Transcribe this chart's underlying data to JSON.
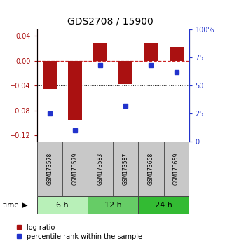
{
  "title": "GDS2708 / 15900",
  "samples": [
    "GSM173578",
    "GSM173579",
    "GSM173583",
    "GSM173587",
    "GSM173658",
    "GSM173659"
  ],
  "log_ratio": [
    -0.046,
    -0.095,
    0.028,
    -0.038,
    0.028,
    0.022
  ],
  "percentile": [
    25,
    10,
    68,
    32,
    68,
    62
  ],
  "groups": [
    {
      "label": "6 h",
      "indices": [
        0,
        1
      ],
      "color": "#b8f0b8"
    },
    {
      "label": "12 h",
      "indices": [
        2,
        3
      ],
      "color": "#66cc66"
    },
    {
      "label": "24 h",
      "indices": [
        4,
        5
      ],
      "color": "#33bb33"
    }
  ],
  "bar_color": "#aa1111",
  "dot_color": "#2233cc",
  "ylim_left": [
    -0.13,
    0.05
  ],
  "ylim_right": [
    0,
    100
  ],
  "yticks_left": [
    0.04,
    0.0,
    -0.04,
    -0.08,
    -0.12
  ],
  "yticks_right": [
    100,
    75,
    50,
    25,
    0
  ],
  "zero_line_color": "#cc2222",
  "grid_color": "#111111",
  "bar_width": 0.55,
  "title_fontsize": 10,
  "tick_fontsize": 7,
  "sample_fontsize": 5.5,
  "time_fontsize": 8,
  "legend_fontsize": 7
}
